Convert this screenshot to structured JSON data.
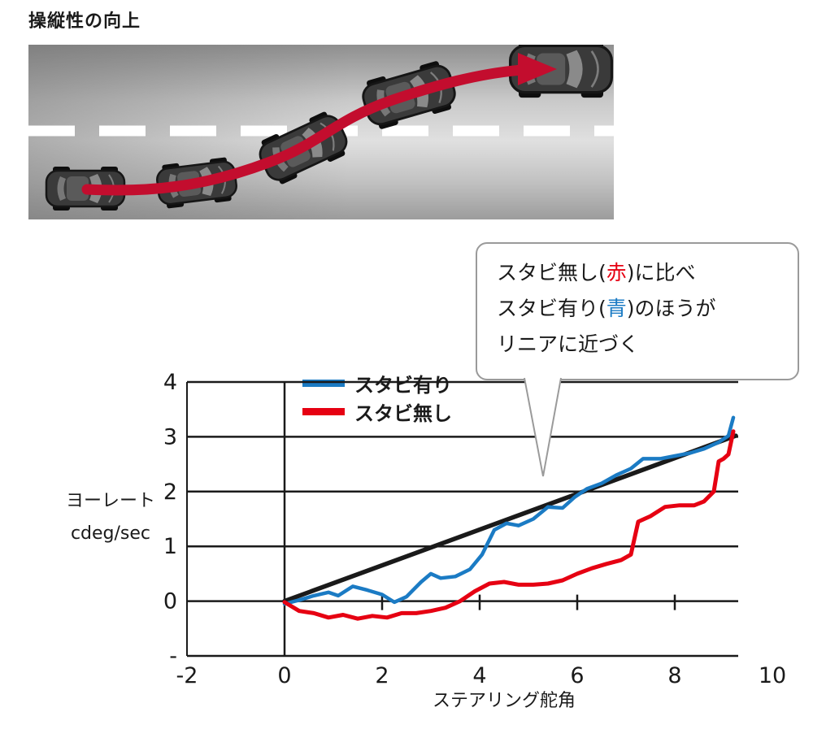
{
  "page": {
    "title": "操縦性の向上",
    "background": "#ffffff"
  },
  "road_illustration": {
    "description": "lane-change maneuver with cars following a red S-curve arrow",
    "car_count": 5,
    "path_color": "#c30d2e",
    "lane_marking_color": "#ffffff"
  },
  "callout": {
    "line1": {
      "pre": "スタビ無し(",
      "accent": "赤",
      "accent_color": "#e60012",
      "post": ")に比べ"
    },
    "line2": {
      "pre": "スタビ有り(",
      "accent": "青",
      "accent_color": "#1b7bc4",
      "post": ")のほうが"
    },
    "line3": "リニアに近づく"
  },
  "chart_data": {
    "type": "line",
    "title": "",
    "xlabel": "ステアリング舵角",
    "ylabel": [
      "ヨーレート",
      "cdeg/sec"
    ],
    "xlim": [
      -2,
      10
    ],
    "ylim": [
      -1,
      4
    ],
    "frame_right_x": 9.3,
    "axis_color": "#1a1a1a",
    "grid_y_values": [
      -1,
      0,
      1,
      2,
      3,
      4
    ],
    "x_tick_values": [
      -2,
      0,
      2,
      4,
      6,
      8,
      10
    ],
    "x_tick_labels": [
      "-2",
      "0",
      "2",
      "4",
      "6",
      "8",
      "10"
    ],
    "y_tick_values": [
      -1,
      0,
      1,
      2,
      3,
      4
    ],
    "y_tick_labels": [
      "-",
      "0",
      "1",
      "2",
      "3",
      "4"
    ],
    "axis_tick_xs": [
      2,
      4,
      6,
      8
    ],
    "legend": [
      {
        "label": "スタビ有り",
        "color": "#1b7bc4"
      },
      {
        "label": "スタビ無し",
        "color": "#e60012"
      }
    ],
    "series": [
      {
        "key": "linear-reference",
        "name": "リニア基準線",
        "color": "#1a1a1a",
        "width": 5.5,
        "points": [
          [
            0,
            0
          ],
          [
            9.25,
            3.02
          ]
        ]
      },
      {
        "key": "with-stabilizer",
        "name": "スタビ有り",
        "color": "#1b7bc4",
        "width": 4.5,
        "points": [
          [
            0,
            -0.05
          ],
          [
            0.3,
            0.02
          ],
          [
            0.6,
            0.1
          ],
          [
            0.9,
            0.16
          ],
          [
            1.1,
            0.1
          ],
          [
            1.4,
            0.27
          ],
          [
            1.7,
            0.2
          ],
          [
            2.0,
            0.12
          ],
          [
            2.25,
            -0.02
          ],
          [
            2.5,
            0.08
          ],
          [
            2.8,
            0.35
          ],
          [
            3.0,
            0.5
          ],
          [
            3.2,
            0.42
          ],
          [
            3.5,
            0.45
          ],
          [
            3.8,
            0.58
          ],
          [
            4.05,
            0.85
          ],
          [
            4.3,
            1.3
          ],
          [
            4.55,
            1.42
          ],
          [
            4.8,
            1.38
          ],
          [
            5.1,
            1.5
          ],
          [
            5.4,
            1.72
          ],
          [
            5.7,
            1.7
          ],
          [
            5.95,
            1.9
          ],
          [
            6.2,
            2.05
          ],
          [
            6.5,
            2.15
          ],
          [
            6.8,
            2.3
          ],
          [
            7.1,
            2.42
          ],
          [
            7.35,
            2.6
          ],
          [
            7.7,
            2.6
          ],
          [
            8.0,
            2.65
          ],
          [
            8.3,
            2.7
          ],
          [
            8.6,
            2.78
          ],
          [
            8.9,
            2.9
          ],
          [
            9.1,
            3.02
          ],
          [
            9.2,
            3.35
          ]
        ]
      },
      {
        "key": "without-stabilizer",
        "name": "スタビ無し",
        "color": "#e60012",
        "width": 5,
        "points": [
          [
            0,
            -0.02
          ],
          [
            0.3,
            -0.18
          ],
          [
            0.6,
            -0.22
          ],
          [
            0.9,
            -0.3
          ],
          [
            1.2,
            -0.25
          ],
          [
            1.5,
            -0.32
          ],
          [
            1.8,
            -0.27
          ],
          [
            2.1,
            -0.3
          ],
          [
            2.4,
            -0.22
          ],
          [
            2.7,
            -0.22
          ],
          [
            3.0,
            -0.18
          ],
          [
            3.3,
            -0.12
          ],
          [
            3.6,
            0.0
          ],
          [
            3.9,
            0.18
          ],
          [
            4.2,
            0.32
          ],
          [
            4.5,
            0.35
          ],
          [
            4.8,
            0.3
          ],
          [
            5.1,
            0.3
          ],
          [
            5.4,
            0.32
          ],
          [
            5.7,
            0.38
          ],
          [
            6.0,
            0.5
          ],
          [
            6.3,
            0.6
          ],
          [
            6.6,
            0.68
          ],
          [
            6.9,
            0.75
          ],
          [
            7.1,
            0.85
          ],
          [
            7.25,
            1.45
          ],
          [
            7.5,
            1.55
          ],
          [
            7.8,
            1.72
          ],
          [
            8.1,
            1.75
          ],
          [
            8.4,
            1.75
          ],
          [
            8.6,
            1.82
          ],
          [
            8.8,
            2.0
          ],
          [
            8.9,
            2.55
          ],
          [
            9.0,
            2.6
          ],
          [
            9.1,
            2.68
          ],
          [
            9.2,
            3.1
          ]
        ]
      }
    ]
  }
}
